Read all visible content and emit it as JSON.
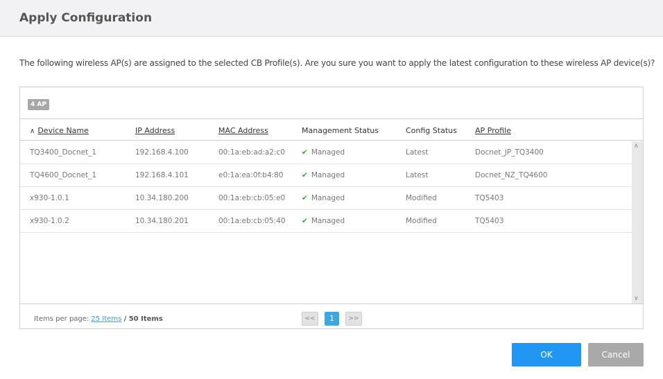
{
  "dialog": {
    "title": "Apply Configuration",
    "message": "The following wireless AP(s) are assigned to the selected CB Profile(s). Are you sure you want to apply the latest configuration to these wireless AP device(s)?"
  },
  "grid": {
    "badge": "4 AP",
    "sort_indicator": "^",
    "columns": [
      "Device Name",
      "IP Address",
      "MAC Address",
      "Management Status",
      "Config Status",
      "AP Profile"
    ],
    "rows": [
      [
        "TQ3400_Docnet_1",
        "192.168.4.100",
        "00:1a:eb:ad:a2:c0",
        "Managed",
        "Latest",
        "Docnet_JP_TQ3400"
      ],
      [
        "TQ4600_Docnet_1",
        "192.168.4.101",
        "e0:1a:ea:0f:b4:80",
        "Managed",
        "Latest",
        "Docnet_NZ_TQ4600"
      ],
      [
        "x930-1.0.1",
        "10.34.180.200",
        "00:1a:eb:cb:05:e0",
        "Managed",
        "Modified",
        "TQ5403"
      ],
      [
        "x930-1.0.2",
        "10.34.180.201",
        "00:1a:eb:cb:05:40",
        "Managed",
        "Modified",
        "TQ5403"
      ]
    ],
    "status_icon": "check-icon",
    "status_color": "#2eab3e"
  },
  "pagination": {
    "label": "Items per page:",
    "per_page": "25 Items",
    "total": "/ 50 Items",
    "prev": "<<",
    "page": "1",
    "next": ">>"
  },
  "buttons": {
    "ok": "OK",
    "cancel": "Cancel",
    "ok_color": "#2196f3",
    "cancel_color": "#a9a9a9"
  }
}
